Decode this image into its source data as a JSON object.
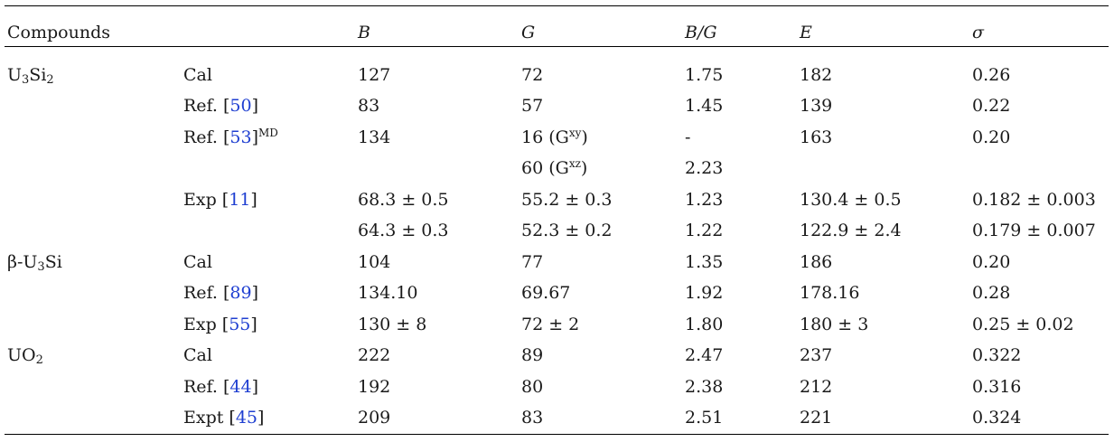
{
  "headers": {
    "compounds": "Compounds",
    "b": "B",
    "g": "G",
    "bg": "B/G",
    "e": "E",
    "sigma": "σ"
  },
  "compounds": {
    "u3si2": {
      "base": "U",
      "sub1": "3",
      "mid": "Si",
      "sub2": "2"
    },
    "u3si": {
      "prefix": "β-U",
      "sub1": "3",
      "mid": "Si"
    },
    "uo2": {
      "base": "UO",
      "sub1": "2"
    }
  },
  "rows": [
    {
      "method": "Cal",
      "ref": "",
      "sup": "",
      "b": "127",
      "g": "72",
      "gsup": "",
      "gend": "",
      "bg": "1.75",
      "e": "182",
      "sigma": "0.26"
    },
    {
      "method": "Ref. [",
      "ref": "50",
      "sup": "",
      "b": "83",
      "g": "57",
      "gsup": "",
      "gend": "",
      "bg": "1.45",
      "e": "139",
      "sigma": "0.22"
    },
    {
      "method": "Ref. [",
      "ref": "53",
      "sup": "MD",
      "b": "134",
      "g": "16 (G",
      "gsup": "xy",
      "gend": ")",
      "bg": "-",
      "e": "163",
      "sigma": "0.20"
    },
    {
      "method": "",
      "ref": "",
      "sup": "",
      "b": "",
      "g": "60 (G",
      "gsup": "xz",
      "gend": ")",
      "bg": "2.23",
      "e": "",
      "sigma": ""
    },
    {
      "method": "Exp [",
      "ref": "11",
      "sup": "",
      "b": "68.3 ± 0.5",
      "g": "55.2 ± 0.3",
      "gsup": "",
      "gend": "",
      "bg": "1.23",
      "e": "130.4 ± 0.5",
      "sigma": "0.182 ± 0.003"
    },
    {
      "method": "",
      "ref": "",
      "sup": "",
      "b": "64.3 ± 0.3",
      "g": "52.3 ± 0.2",
      "gsup": "",
      "gend": "",
      "bg": "1.22",
      "e": "122.9 ± 2.4",
      "sigma": "0.179 ± 0.007"
    },
    {
      "method": "Cal",
      "ref": "",
      "sup": "",
      "b": "104",
      "g": "77",
      "gsup": "",
      "gend": "",
      "bg": "1.35",
      "e": "186",
      "sigma": "0.20"
    },
    {
      "method": "Ref. [",
      "ref": "89",
      "sup": "",
      "b": "134.10",
      "g": "69.67",
      "gsup": "",
      "gend": "",
      "bg": "1.92",
      "e": "178.16",
      "sigma": "0.28"
    },
    {
      "method": "Exp [",
      "ref": "55",
      "sup": "",
      "b": "130 ± 8",
      "g": "72 ± 2",
      "gsup": "",
      "gend": "",
      "bg": "1.80",
      "e": "180 ± 3",
      "sigma": "0.25 ± 0.02"
    },
    {
      "method": "Cal",
      "ref": "",
      "sup": "",
      "b": "222",
      "g": "89",
      "gsup": "",
      "gend": "",
      "bg": "2.47",
      "e": "237",
      "sigma": "0.322"
    },
    {
      "method": "Ref. [",
      "ref": "44",
      "sup": "",
      "b": "192",
      "g": "80",
      "gsup": "",
      "gend": "",
      "bg": "2.38",
      "e": "212",
      "sigma": "0.316"
    },
    {
      "method": "Expt [",
      "ref": "45",
      "sup": "",
      "b": "209",
      "g": "83",
      "gsup": "",
      "gend": "",
      "bg": "2.51",
      "e": "221",
      "sigma": "0.324"
    }
  ],
  "style": {
    "rule_color": "#000000",
    "ref_color": "#1f3fd1",
    "text_color": "#1a1a1a"
  }
}
